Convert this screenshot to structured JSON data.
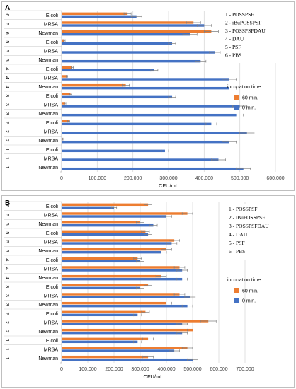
{
  "colors": {
    "zero_min": "#4472C4",
    "sixty_min": "#ED7D31",
    "grid": "#d9d9d9",
    "error": "#7f7f7f"
  },
  "chart_data": [
    {
      "type": "bar",
      "orientation": "horizontal",
      "panel_label": "A",
      "xlabel": "CFU/mL",
      "xlim": [
        0,
        600000
      ],
      "xticks": [
        "0",
        "100,000",
        "200,000",
        "300,000",
        "400,000",
        "500,000",
        "600,000"
      ],
      "grid": true,
      "legend_position": "right",
      "legend_title": "incubation time",
      "group_key": [
        "1 - POSSPSF",
        "2 - iBuPOSSPSF",
        "3 - POSSPSFDAU",
        "4 - DAU",
        "5 - PSF",
        "6 - PBS"
      ],
      "categories": [
        {
          "group": "1",
          "strain": "Newman"
        },
        {
          "group": "1",
          "strain": "MRSA"
        },
        {
          "group": "1",
          "strain": "E.coli"
        },
        {
          "group": "2",
          "strain": "Newman"
        },
        {
          "group": "2",
          "strain": "MRSA"
        },
        {
          "group": "2",
          "strain": "E.coli"
        },
        {
          "group": "3",
          "strain": "Newman"
        },
        {
          "group": "3",
          "strain": "MRSA"
        },
        {
          "group": "3",
          "strain": "E.coli"
        },
        {
          "group": "4",
          "strain": "Newman"
        },
        {
          "group": "4",
          "strain": "MRSA"
        },
        {
          "group": "4",
          "strain": "E.coli"
        },
        {
          "group": "5",
          "strain": "Newman"
        },
        {
          "group": "5",
          "strain": "MRSA"
        },
        {
          "group": "5",
          "strain": "E.coli"
        },
        {
          "group": "6",
          "strain": "Newman"
        },
        {
          "group": "6",
          "strain": "MRSA"
        },
        {
          "group": "6",
          "strain": "E.coli"
        }
      ],
      "series": [
        {
          "name": "60 min.",
          "values": [
            0,
            0,
            0,
            3000,
            0,
            20000,
            0,
            10000,
            25000,
            180000,
            15000,
            30000,
            0,
            0,
            8000,
            420000,
            370000,
            185000
          ],
          "errors": [
            0,
            0,
            0,
            1000,
            0,
            3000,
            0,
            2000,
            3000,
            10000,
            2000,
            3000,
            0,
            0,
            2000,
            20000,
            20000,
            10000
          ]
        },
        {
          "name": "0 min.",
          "values": [
            510000,
            440000,
            290000,
            470000,
            520000,
            420000,
            490000,
            500000,
            310000,
            470000,
            470000,
            260000,
            390000,
            430000,
            310000,
            360000,
            400000,
            210000
          ],
          "errors": [
            20000,
            20000,
            10000,
            20000,
            20000,
            15000,
            20000,
            20000,
            10000,
            20000,
            20000,
            10000,
            15000,
            15000,
            10000,
            20000,
            20000,
            15000
          ]
        }
      ]
    },
    {
      "type": "bar",
      "orientation": "horizontal",
      "panel_label": "B",
      "xlabel": "CFU/mL",
      "xlim": [
        0,
        700000
      ],
      "xticks": [
        "0",
        "100,000",
        "200,000",
        "300,000",
        "400,000",
        "500,000",
        "600,000",
        "700,000"
      ],
      "grid": true,
      "legend_position": "right",
      "legend_title": "incubation time",
      "group_key": [
        "1 - POSSPSF",
        "2 - iBuPOSSPSF",
        "3 - POSSPSFDAU",
        "4 - DAU",
        "5 - PSF",
        "6 - PBS"
      ],
      "categories": [
        {
          "group": "1",
          "strain": "Newman"
        },
        {
          "group": "1",
          "strain": "MRSA"
        },
        {
          "group": "1",
          "strain": "E.coli"
        },
        {
          "group": "2",
          "strain": "Newman"
        },
        {
          "group": "2",
          "strain": "MRSA"
        },
        {
          "group": "2",
          "strain": "E.coli"
        },
        {
          "group": "3",
          "strain": "Newman"
        },
        {
          "group": "3",
          "strain": "MRSA"
        },
        {
          "group": "3",
          "strain": "E.coli"
        },
        {
          "group": "4",
          "strain": "Newman"
        },
        {
          "group": "4",
          "strain": "MRSA"
        },
        {
          "group": "4",
          "strain": "E.coli"
        },
        {
          "group": "5",
          "strain": "Newman"
        },
        {
          "group": "5",
          "strain": "MRSA"
        },
        {
          "group": "5",
          "strain": "E.coli"
        },
        {
          "group": "6",
          "strain": "Newman"
        },
        {
          "group": "6",
          "strain": "MRSA"
        },
        {
          "group": "6",
          "strain": "E.coli"
        }
      ],
      "series": [
        {
          "name": "60 min.",
          "values": [
            330000,
            480000,
            330000,
            500000,
            560000,
            320000,
            400000,
            450000,
            330000,
            380000,
            450000,
            290000,
            400000,
            430000,
            320000,
            300000,
            480000,
            330000
          ],
          "errors": [
            20000,
            20000,
            20000,
            20000,
            30000,
            15000,
            20000,
            20000,
            15000,
            20000,
            20000,
            15000,
            20000,
            20000,
            15000,
            15000,
            20000,
            15000
          ]
        },
        {
          "name": "0 min.",
          "values": [
            500000,
            430000,
            290000,
            460000,
            460000,
            290000,
            480000,
            490000,
            300000,
            460000,
            460000,
            300000,
            380000,
            420000,
            330000,
            350000,
            400000,
            200000
          ],
          "errors": [
            20000,
            20000,
            15000,
            20000,
            20000,
            15000,
            20000,
            20000,
            15000,
            20000,
            20000,
            15000,
            20000,
            20000,
            15000,
            15000,
            20000,
            10000
          ]
        }
      ]
    }
  ]
}
